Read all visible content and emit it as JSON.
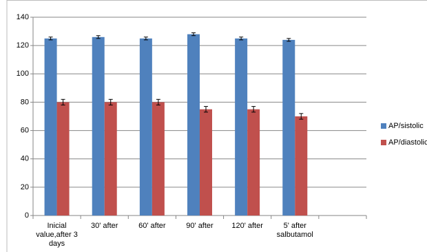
{
  "chart_data": {
    "type": "bar",
    "categories": [
      "Inicial value,after 3 days",
      "30' after",
      "60' after",
      "90' after",
      "120' after",
      "5' after salbutamol",
      null
    ],
    "series": [
      {
        "name": "AP/sistolic",
        "color": "#4f81bd",
        "values": [
          125,
          126,
          125,
          128,
          125,
          124,
          null
        ],
        "errors": [
          1,
          1,
          1,
          1,
          1,
          1,
          null
        ]
      },
      {
        "name": "AP/diastolic",
        "color": "#c0504d",
        "values": [
          80,
          80,
          80,
          75,
          75,
          70,
          null
        ],
        "errors": [
          2,
          2,
          2,
          2,
          2,
          2,
          null
        ]
      }
    ],
    "ylim": [
      0,
      140
    ],
    "yticks": [
      0,
      20,
      40,
      60,
      80,
      100,
      120,
      140
    ],
    "grid": true,
    "legend": "right"
  }
}
